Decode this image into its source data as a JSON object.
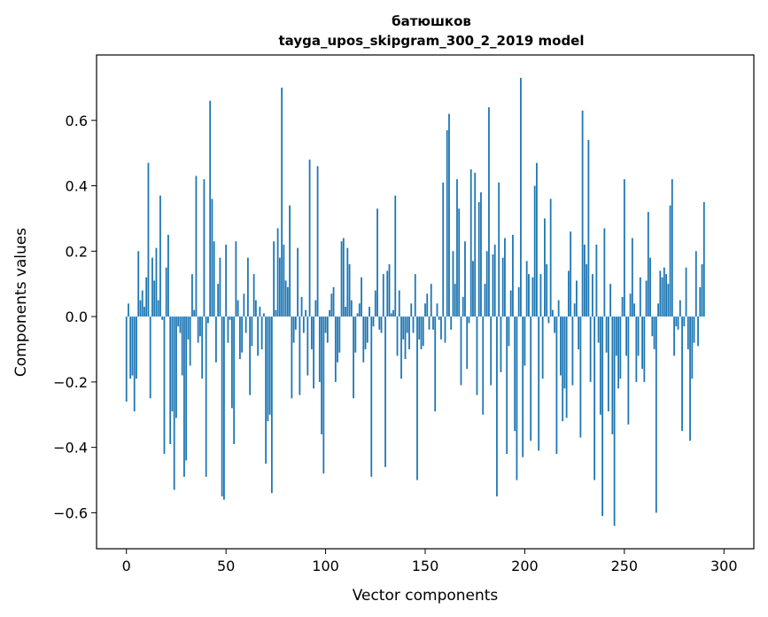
{
  "chart_data": {
    "type": "bar",
    "title": "батюшков",
    "subtitle": "tayga_upos_skipgram_300_2_2019 model",
    "xlabel": "Vector components",
    "ylabel": "Components values",
    "xlim": [
      -15,
      315
    ],
    "ylim": [
      -0.71,
      0.8
    ],
    "x_ticks": [
      0,
      50,
      100,
      150,
      200,
      250,
      300
    ],
    "x_tick_labels": [
      "0",
      "50",
      "100",
      "150",
      "200",
      "250",
      "300"
    ],
    "y_ticks": [
      -0.6,
      -0.4,
      -0.2,
      0.0,
      0.2,
      0.4,
      0.6
    ],
    "y_tick_labels": [
      "−0.6",
      "−0.4",
      "−0.2",
      "0.0",
      "0.2",
      "0.4",
      "0.6"
    ],
    "grid": false,
    "bar_color": "#1f77b4",
    "x_start": 0,
    "values": [
      -0.26,
      0.04,
      -0.19,
      -0.18,
      -0.29,
      -0.19,
      0.2,
      0.05,
      0.08,
      0.03,
      0.12,
      0.47,
      -0.25,
      0.18,
      0.11,
      0.21,
      0.05,
      0.37,
      -0.01,
      -0.42,
      0.15,
      0.25,
      -0.39,
      -0.29,
      -0.53,
      -0.31,
      -0.03,
      -0.05,
      -0.18,
      -0.49,
      -0.44,
      -0.07,
      -0.15,
      0.13,
      0.02,
      0.43,
      -0.08,
      -0.06,
      -0.19,
      0.42,
      -0.49,
      -0.02,
      0.66,
      0.36,
      0.23,
      -0.14,
      0.1,
      0.18,
      -0.55,
      -0.56,
      0.22,
      -0.08,
      -0.01,
      -0.28,
      -0.39,
      0.23,
      0.05,
      -0.13,
      -0.11,
      0.07,
      -0.05,
      0.18,
      -0.24,
      -0.09,
      0.13,
      0.05,
      -0.12,
      0.03,
      -0.1,
      0.01,
      -0.45,
      -0.32,
      -0.3,
      -0.54,
      0.23,
      0.02,
      0.27,
      0.18,
      0.7,
      0.22,
      0.11,
      0.09,
      0.34,
      -0.25,
      -0.08,
      -0.04,
      0.21,
      -0.24,
      0.06,
      -0.05,
      0.02,
      -0.18,
      0.48,
      -0.1,
      -0.22,
      0.05,
      0.46,
      -0.2,
      -0.36,
      -0.48,
      -0.05,
      -0.08,
      0.02,
      0.07,
      0.09,
      -0.2,
      -0.14,
      -0.11,
      0.23,
      0.24,
      0.03,
      0.21,
      0.16,
      0.05,
      -0.25,
      -0.11,
      0.01,
      0.04,
      0.12,
      -0.14,
      -0.1,
      -0.08,
      0.03,
      -0.49,
      -0.03,
      0.08,
      0.33,
      -0.04,
      -0.05,
      0.13,
      -0.46,
      0.14,
      0.16,
      0.01,
      0.02,
      0.37,
      -0.12,
      0.08,
      -0.19,
      -0.07,
      -0.13,
      -0.05,
      -0.1,
      0.04,
      -0.05,
      0.13,
      -0.5,
      -0.07,
      -0.1,
      -0.09,
      0.04,
      0.07,
      -0.04,
      0.1,
      -0.04,
      -0.29,
      0.04,
      -0.01,
      -0.07,
      0.41,
      -0.08,
      0.57,
      0.62,
      -0.04,
      0.2,
      0.1,
      0.42,
      0.33,
      -0.21,
      0.06,
      0.23,
      -0.16,
      -0.02,
      0.45,
      0.17,
      0.44,
      -0.24,
      0.35,
      0.38,
      -0.3,
      0.1,
      0.2,
      0.64,
      -0.21,
      0.19,
      0.22,
      -0.55,
      0.41,
      -0.17,
      0.18,
      0.24,
      -0.42,
      -0.09,
      0.08,
      0.25,
      -0.35,
      -0.5,
      0.09,
      0.73,
      -0.43,
      -0.15,
      0.17,
      0.13,
      -0.38,
      0.12,
      0.4,
      0.47,
      -0.41,
      0.13,
      -0.19,
      0.3,
      0.16,
      -0.02,
      0.36,
      0.02,
      -0.05,
      -0.42,
      0.05,
      -0.18,
      -0.32,
      -0.22,
      -0.31,
      0.14,
      0.26,
      -0.21,
      0.04,
      0.11,
      -0.1,
      -0.37,
      0.63,
      0.22,
      0.16,
      0.54,
      -0.2,
      0.13,
      -0.5,
      0.22,
      -0.08,
      -0.3,
      -0.61,
      0.27,
      -0.11,
      -0.29,
      0.1,
      -0.36,
      -0.64,
      -0.12,
      -0.22,
      -0.19,
      0.06,
      0.42,
      -0.12,
      -0.33,
      0.07,
      0.24,
      0.04,
      -0.2,
      -0.12,
      0.12,
      -0.16,
      -0.2,
      0.11,
      0.32,
      0.18,
      -0.06,
      -0.1,
      -0.6,
      0.04,
      0.14,
      0.12,
      0.15,
      0.13,
      0.1,
      0.34,
      0.42,
      -0.12,
      -0.03,
      -0.04,
      0.05,
      -0.35,
      -0.03,
      0.15,
      -0.1,
      -0.38,
      -0.19,
      -0.08,
      0.2,
      -0.09,
      0.09,
      0.16,
      0.35
    ]
  }
}
